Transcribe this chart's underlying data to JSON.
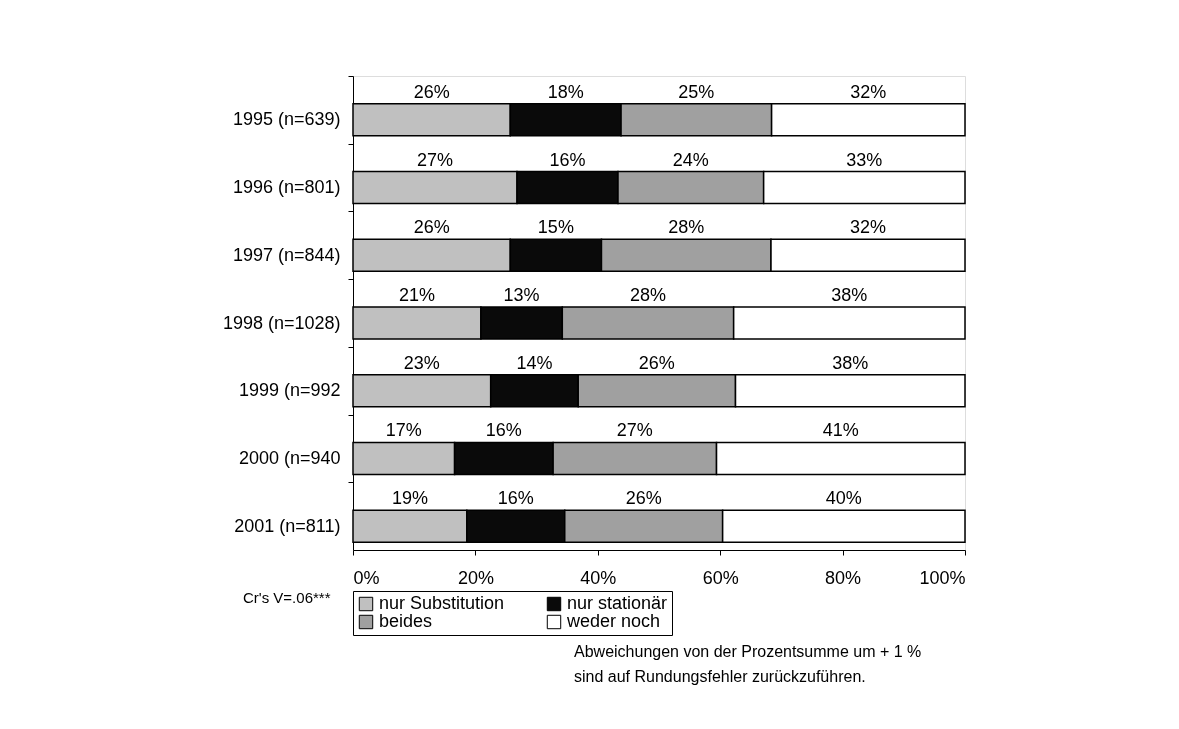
{
  "chart_data": {
    "type": "bar",
    "orientation": "horizontal",
    "stacked": true,
    "categories": [
      "1995 (n=639)",
      "1996 (n=801)",
      "1997 (n=844)",
      "1998 (n=1028)",
      "1999 (n=992",
      "2000 (n=940",
      "2001 (n=811)"
    ],
    "series": [
      {
        "name": "nur Substitution",
        "color": "#c0c0c0",
        "values": [
          25.7,
          26.8,
          25.7,
          20.9,
          22.5,
          16.6,
          18.6
        ],
        "value_labels": [
          "26%",
          "27%",
          "26%",
          "21%",
          "23%",
          "17%",
          "19%"
        ]
      },
      {
        "name": "nur stationär",
        "color": "#0a0a0a",
        "values": [
          18.1,
          16.5,
          14.9,
          13.3,
          14.3,
          16.1,
          16.0
        ],
        "value_labels": [
          "18%",
          "16%",
          "15%",
          "13%",
          "14%",
          "16%",
          "16%"
        ]
      },
      {
        "name": "beides",
        "color": "#a0a0a0",
        "values": [
          24.6,
          23.8,
          27.7,
          28.0,
          25.7,
          26.7,
          25.8
        ],
        "value_labels": [
          "25%",
          "24%",
          "28%",
          "28%",
          "26%",
          "27%",
          "26%"
        ]
      },
      {
        "name": "weder noch",
        "color": "#ffffff",
        "values": [
          31.6,
          32.9,
          31.7,
          37.8,
          37.5,
          40.6,
          39.6
        ],
        "value_labels": [
          "32%",
          "33%",
          "32%",
          "38%",
          "38%",
          "41%",
          "40%"
        ]
      }
    ],
    "xlim": [
      0,
      100
    ],
    "xticks": [
      {
        "value": 0,
        "label": "0%"
      },
      {
        "value": 20,
        "label": "20%"
      },
      {
        "value": 40,
        "label": "40%"
      },
      {
        "value": 60,
        "label": "60%"
      },
      {
        "value": 80,
        "label": "80%"
      },
      {
        "value": 100,
        "label": "100%"
      }
    ],
    "grid": false,
    "legend": "bottom",
    "annotations": [
      "Cr's V=.06***",
      "Abweichungen von der Prozentsumme um + 1 %",
      "sind auf Rundungsfehler zurückzuführen."
    ]
  }
}
